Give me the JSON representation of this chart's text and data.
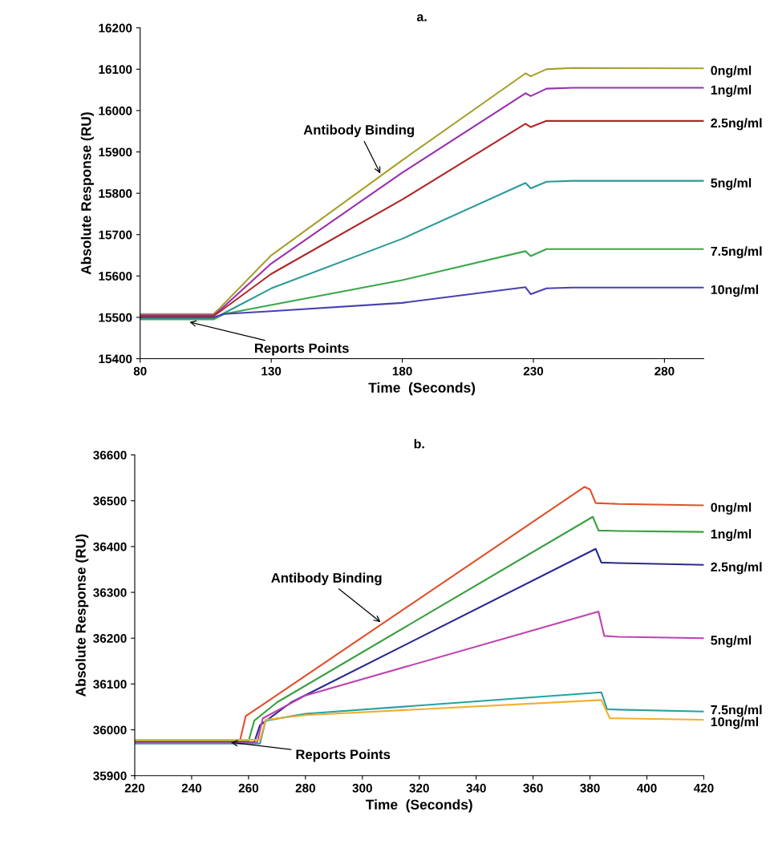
{
  "chart_data": [
    {
      "type": "line",
      "title": "a.",
      "xlabel": "Time  (Seconds)",
      "ylabel": "Absolute Response (RU)",
      "xlim": [
        80,
        295
      ],
      "xticks": [
        80,
        130,
        180,
        230,
        280
      ],
      "ylim": [
        15400,
        16200
      ],
      "yticks": [
        15400,
        15500,
        15600,
        15700,
        15800,
        15900,
        16000,
        16100,
        16200
      ],
      "grid": false,
      "legend": false,
      "annotations": [
        {
          "text": "Antibody Binding",
          "x": 172,
          "y": 15843
        },
        {
          "text": "Reports Points",
          "x": 98,
          "y": 15490
        }
      ],
      "series": [
        {
          "name": "0ng/ml",
          "color": "#a5a02a",
          "x": [
            80,
            108,
            110,
            130,
            180,
            227,
            229,
            235,
            245,
            295
          ],
          "values": [
            15508,
            15508,
            15520,
            15650,
            15880,
            16090,
            16083,
            16100,
            16103,
            16102
          ]
        },
        {
          "name": "1ng/ml",
          "color": "#9a30b0",
          "x": [
            80,
            108,
            110,
            130,
            180,
            227,
            229,
            235,
            245,
            295
          ],
          "values": [
            15505,
            15505,
            15515,
            15630,
            15850,
            16042,
            16035,
            16053,
            16055,
            16055
          ]
        },
        {
          "name": "2.5ng/ml",
          "color": "#b02828",
          "x": [
            80,
            108,
            110,
            130,
            180,
            227,
            229,
            235,
            245,
            295
          ],
          "values": [
            15503,
            15503,
            15512,
            15605,
            15785,
            15968,
            15960,
            15975,
            15975,
            15975
          ]
        },
        {
          "name": "5ng/ml",
          "color": "#2a9a9a",
          "x": [
            80,
            108,
            112,
            130,
            180,
            227,
            229,
            235,
            245,
            295
          ],
          "values": [
            15497,
            15497,
            15510,
            15570,
            15690,
            15825,
            15812,
            15828,
            15830,
            15830
          ]
        },
        {
          "name": "7.5ng/ml",
          "color": "#3aa84a",
          "x": [
            80,
            108,
            112,
            130,
            180,
            227,
            229,
            235,
            245,
            295
          ],
          "values": [
            15495,
            15495,
            15508,
            15530,
            15590,
            15660,
            15648,
            15665,
            15665,
            15665
          ]
        },
        {
          "name": "10ng/ml",
          "color": "#4a40b0",
          "x": [
            80,
            108,
            112,
            130,
            180,
            227,
            229,
            235,
            245,
            295
          ],
          "values": [
            15500,
            15500,
            15508,
            15515,
            15535,
            15573,
            15556,
            15570,
            15572,
            15572
          ]
        }
      ]
    },
    {
      "type": "line",
      "title": "b.",
      "xlabel": "Time  (Seconds)",
      "ylabel": "Absolute Response (RU)",
      "xlim": [
        220,
        420
      ],
      "xticks": [
        220,
        240,
        260,
        280,
        300,
        320,
        340,
        360,
        380,
        400,
        420
      ],
      "ylim": [
        35900,
        36600
      ],
      "yticks": [
        35900,
        36000,
        36100,
        36200,
        36300,
        36400,
        36500,
        36600
      ],
      "grid": false,
      "legend": false,
      "annotations": [
        {
          "text": "Antibody Binding",
          "x": 307,
          "y": 36232
        },
        {
          "text": "Reports Points",
          "x": 253,
          "y": 35973
        }
      ],
      "series": [
        {
          "name": "0ng/ml",
          "color": "#e0502a",
          "x": [
            220,
            257,
            259,
            265,
            378,
            380,
            382,
            390,
            420
          ],
          "values": [
            35977,
            35977,
            36030,
            36055,
            36530,
            36525,
            36495,
            36493,
            36490
          ]
        },
        {
          "name": "1ng/ml",
          "color": "#3aa040",
          "x": [
            220,
            260,
            262,
            270,
            381,
            383,
            390,
            420
          ],
          "values": [
            35975,
            35975,
            36020,
            36060,
            36465,
            36435,
            36434,
            36432
          ]
        },
        {
          "name": "2.5ng/ml",
          "color": "#2a2a90",
          "x": [
            220,
            262,
            264,
            275,
            382,
            384,
            390,
            420
          ],
          "values": [
            35973,
            35973,
            36010,
            36060,
            36395,
            36365,
            36364,
            36360
          ]
        },
        {
          "name": "5ng/ml",
          "color": "#c040b0",
          "x": [
            220,
            263,
            265,
            280,
            383,
            385,
            390,
            420
          ],
          "values": [
            35972,
            35972,
            36025,
            36075,
            36258,
            36205,
            36203,
            36200
          ]
        },
        {
          "name": "7.5ng/ml",
          "color": "#2aa0a0",
          "x": [
            220,
            264,
            266,
            280,
            384,
            386,
            390,
            420
          ],
          "values": [
            35970,
            35970,
            36020,
            36035,
            36082,
            36045,
            36044,
            36040
          ]
        },
        {
          "name": "10ng/ml",
          "color": "#f0b030",
          "x": [
            220,
            264,
            266,
            280,
            384,
            387,
            390,
            420
          ],
          "values": [
            35978,
            35978,
            36022,
            36032,
            36065,
            36025,
            36025,
            36022
          ]
        }
      ]
    }
  ]
}
